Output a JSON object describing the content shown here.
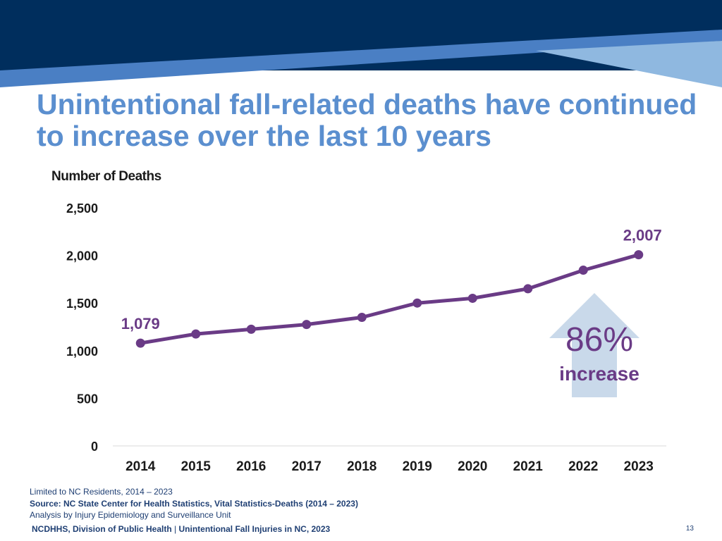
{
  "slide": {
    "title": "Unintentional fall-related deaths have continued to increase over the last 10 years",
    "page_number": "13"
  },
  "colors": {
    "banner_dark": "#002e5d",
    "banner_mid": "#4a7fc4",
    "banner_light": "#8fb8e0",
    "title": "#5b8fcf",
    "series": "#6a3b86",
    "arrow": "#c9d9ea"
  },
  "callout": {
    "percent": "86%",
    "word": "increase",
    "icon": "up-arrow-icon"
  },
  "footer": {
    "note_limit": "Limited to NC Residents, 2014 – 2023",
    "note_source": "Source: NC State Center for Health Statistics, Vital Statistics-Deaths (2014 – 2023)",
    "note_analysis": "Analysis by Injury Epidemiology and Surveillance Unit",
    "org_left": "NCDHHS, Division of Public Health",
    "org_separator": " | ",
    "org_right": "Unintentional Fall Injuries in NC, 2023"
  },
  "chart_data": {
    "type": "line",
    "title": "",
    "ylabel": "Number of Deaths",
    "xlabel": "",
    "x": [
      "2014",
      "2015",
      "2016",
      "2017",
      "2018",
      "2019",
      "2020",
      "2021",
      "2022",
      "2023"
    ],
    "series": [
      {
        "values": [
          1079,
          1175,
          1225,
          1275,
          1350,
          1500,
          1550,
          1650,
          1845,
          2007
        ]
      }
    ],
    "ylim": [
      0,
      2500
    ],
    "yticks": [
      0,
      500,
      1000,
      1500,
      2000,
      2500
    ],
    "ytick_labels": [
      "0",
      "500",
      "1,000",
      "1,500",
      "2,000",
      "2,500"
    ],
    "data_labels": [
      {
        "index": 0,
        "text": "1,079"
      },
      {
        "index": 9,
        "text": "2,007"
      }
    ],
    "grid": false
  }
}
